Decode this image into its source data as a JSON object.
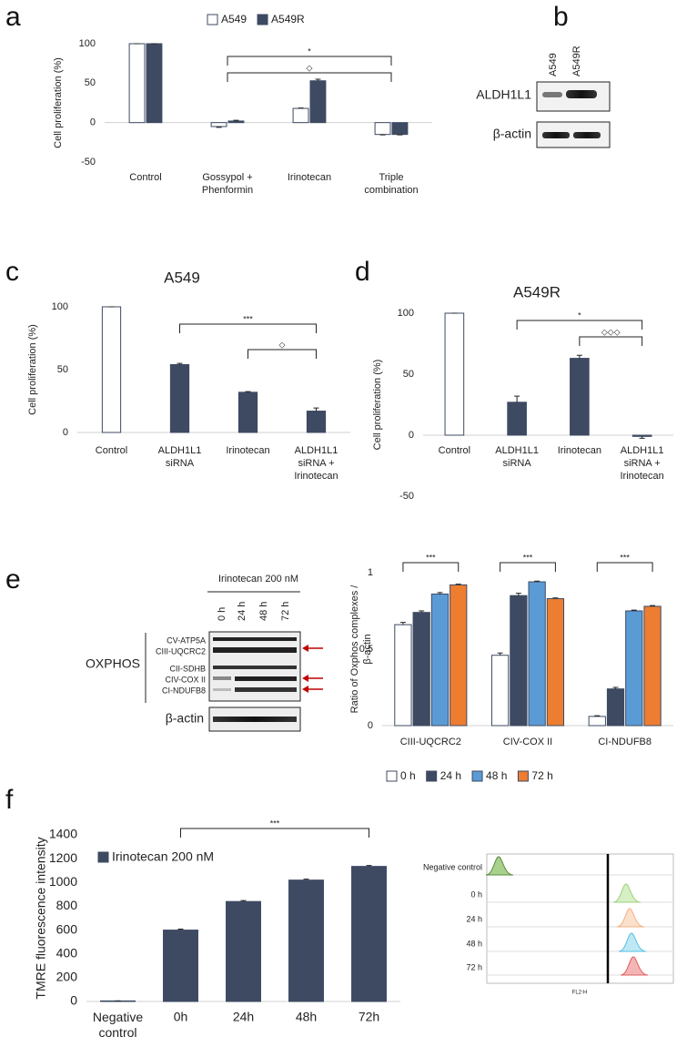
{
  "panel_letters": [
    "a",
    "b",
    "c",
    "d",
    "e",
    "f"
  ],
  "blot_b": {
    "lanes": [
      "A549",
      "A549R"
    ],
    "rows": [
      "ALDH1L1",
      "β-actin"
    ]
  },
  "blot_e": {
    "treatment": "Irinotecan 200 nM",
    "lanes": [
      "0 h",
      "24 h",
      "48 h",
      "72 h"
    ],
    "group": "OXPHOS",
    "complexes": [
      "CV-ATP5A",
      "CIII-UQCRC2",
      "CII-SDHB",
      "CIV-COX II",
      "CI-NDUFB8"
    ],
    "loading": "β-actin"
  },
  "flow": {
    "rows": [
      "Negative control",
      "0 h",
      "24 h",
      "48 h",
      "72 h"
    ],
    "xlabel": "FL2-H"
  },
  "chart_data": [
    {
      "type": "bar",
      "ylabel": "Cell proliferation (%)",
      "categories": [
        "Control",
        "Gossypol +\nPhenformin",
        "Irinotecan",
        "Triple\ncombination"
      ],
      "series": [
        {
          "name": "A549",
          "color": "#ffffff",
          "values": [
            100,
            -5,
            18,
            -15
          ],
          "errors": [
            0,
            1,
            0.5,
            0.5
          ]
        },
        {
          "name": "A549R",
          "color": "#3d4a62",
          "values": [
            100,
            2,
            53,
            -15
          ],
          "errors": [
            0,
            1,
            2,
            0.5
          ]
        }
      ],
      "ylim": [
        -50,
        100
      ],
      "yticks": [
        -50,
        0,
        50,
        100
      ],
      "annotations": [
        "*",
        "◇"
      ]
    },
    {
      "type": "bar",
      "title": "A549",
      "ylabel": "Cell proliferation (%)",
      "categories": [
        "Control",
        "ALDH1L1\nsiRNA",
        "Irinotecan",
        "ALDH1L1\nsiRNA +\nIrinotecan"
      ],
      "values": [
        100,
        54,
        32,
        17
      ],
      "errors": [
        0,
        1,
        0.5,
        2.5
      ],
      "colors": [
        "#ffffff",
        "#3d4a62",
        "#3d4a62",
        "#3d4a62"
      ],
      "ylim": [
        0,
        100
      ],
      "yticks": [
        0,
        50,
        100
      ],
      "annotations": [
        "***",
        "◇"
      ]
    },
    {
      "type": "bar",
      "title": "A549R",
      "ylabel": "Cell proliferation (%)",
      "categories": [
        "Control",
        "ALDH1L1\nsiRNA",
        "Irinotecan",
        "ALDH1L1\nsiRNA +\nIrinotecan"
      ],
      "values": [
        100,
        27,
        63,
        -1
      ],
      "errors": [
        0,
        5,
        2.5,
        1.5
      ],
      "colors": [
        "#ffffff",
        "#3d4a62",
        "#3d4a62",
        "#3d4a62"
      ],
      "ylim": [
        -50,
        100
      ],
      "yticks": [
        -50,
        0,
        50,
        100
      ],
      "annotations": [
        "*",
        "◇◇◇"
      ]
    },
    {
      "type": "bar",
      "ylabel": "Ratio of Oxphos complexes /\nβ-actin",
      "categories": [
        "CIII-UQCRC2",
        "CIV-COX II",
        "CI-NDUFB8"
      ],
      "series": [
        {
          "name": "0 h",
          "color": "#ffffff",
          "values": [
            0.66,
            0.46,
            0.06
          ],
          "errors": [
            0.015,
            0.015,
            0.005
          ]
        },
        {
          "name": "24 h",
          "color": "#3d4a62",
          "values": [
            0.74,
            0.85,
            0.24
          ],
          "errors": [
            0.01,
            0.015,
            0.01
          ]
        },
        {
          "name": "48 h",
          "color": "#5b9bd5",
          "values": [
            0.86,
            0.94,
            0.75
          ],
          "errors": [
            0.01,
            0.005,
            0.005
          ]
        },
        {
          "name": "72 h",
          "color": "#ed7d31",
          "values": [
            0.92,
            0.83,
            0.78
          ],
          "errors": [
            0.005,
            0.005,
            0.005
          ]
        }
      ],
      "ylim": [
        0,
        1
      ],
      "yticks": [
        0,
        0.5,
        1
      ],
      "annotations": [
        "***",
        "***",
        "***"
      ]
    },
    {
      "type": "bar",
      "ylabel": "TMRE fluorescence  intensity",
      "categories": [
        "Negative\ncontrol",
        "0h",
        "24h",
        "48h",
        "72h"
      ],
      "series": [
        {
          "name": "Irinotecan 200 nM",
          "color": "#3d4a62",
          "values": [
            5,
            600,
            840,
            1020,
            1135
          ],
          "errors": [
            0,
            8,
            8,
            8,
            8
          ]
        }
      ],
      "ylim": [
        0,
        1400
      ],
      "yticks": [
        0,
        200,
        400,
        600,
        800,
        1000,
        1200,
        1400
      ],
      "annotations": [
        "***"
      ]
    }
  ]
}
